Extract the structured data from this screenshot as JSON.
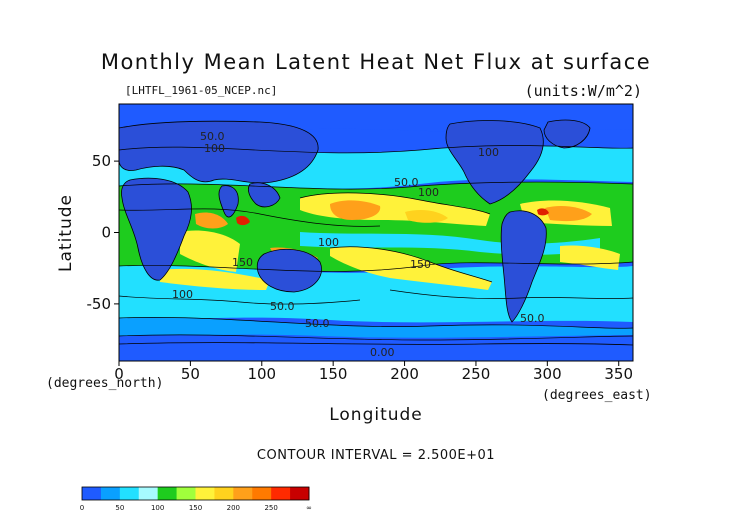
{
  "chart_data": {
    "type": "heatmap",
    "title": "Monthly Mean Latent Heat Net Flux at surface",
    "subtitle": "[LHTFL_1961-05_NCEP.nc]",
    "units": "(units:W/m^2)",
    "xlabel": "Longitude",
    "ylabel": "Latitude",
    "x_dim_label": "(degrees_east)",
    "y_dim_label": "(degrees_north)",
    "xlim": [
      0,
      360
    ],
    "ylim": [
      -90,
      90
    ],
    "x_ticks": [
      0,
      50,
      100,
      150,
      200,
      250,
      300,
      350
    ],
    "y_ticks": [
      50,
      0,
      -50
    ],
    "contour_interval_text": "CONTOUR INTERVAL = 2.500E+01",
    "colorbar": {
      "labels": [
        "0",
        "50",
        "100",
        "150",
        "200",
        "250",
        "∞"
      ],
      "colors": [
        "#1f5bff",
        "#0aa0ff",
        "#22e0ff",
        "#a6fbff",
        "#1ecc1e",
        "#a0ff3c",
        "#fff23a",
        "#ffd21e",
        "#ffa01a",
        "#ff7a00",
        "#ff2a00",
        "#c80000"
      ]
    },
    "contour_labels": [
      "50.0",
      "100",
      "100",
      "50.0",
      "100",
      "100",
      "150",
      "150",
      "100",
      "50.0",
      "50.0",
      "50.0",
      "0.00"
    ],
    "grid": false,
    "legend": "colorbar bottom-left"
  },
  "colors": {
    "ocean_low": "#1f5bff",
    "land": "#2b4fd8",
    "cyan": "#22e0ff",
    "green": "#1ecc1e",
    "yellow": "#fff23a",
    "orange": "#ffa01a",
    "red": "#e02000"
  }
}
